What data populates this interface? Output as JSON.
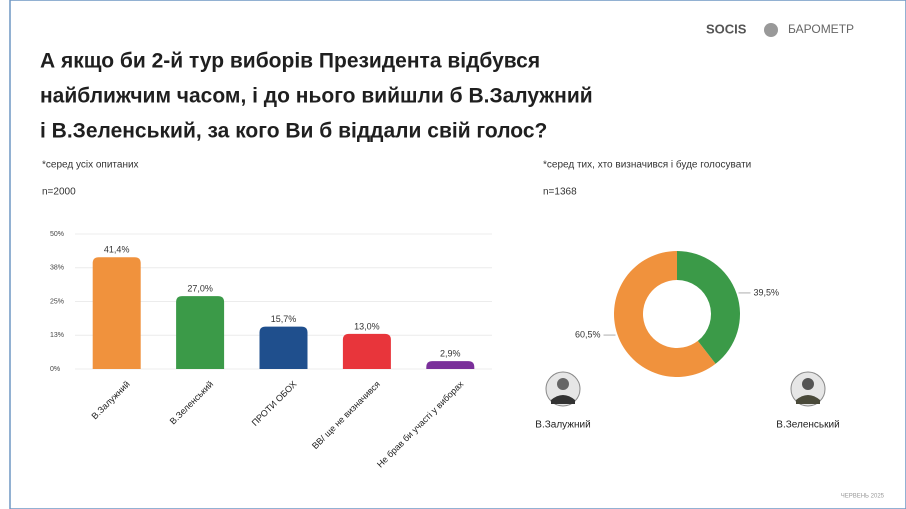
{
  "brand": "SOCIS",
  "brand_product": "БАРОМЕТР",
  "title_lines": [
    "А якщо би 2-й тур виборів Президента відбувся",
    "найближчим часом, і до нього вийшли б В.Залужний",
    "і В.Зеленський, за кого Ви б віддали свій голос?"
  ],
  "footer": "ЧЕРВЕНЬ 2025",
  "chart_data": [
    {
      "type": "bar",
      "subtitle": "*серед усіх опитаних",
      "sample": "n=2000",
      "categories": [
        "В.Залужний",
        "В.Зеленський",
        "ПРОТИ ОБОХ",
        "ВВ/ ще не визначився",
        "Не брав би участі у виборах"
      ],
      "values": [
        41.4,
        27.0,
        15.7,
        13.0,
        2.9
      ],
      "value_labels": [
        "41,4%",
        "27,0%",
        "15,7%",
        "13,0%",
        "2,9%"
      ],
      "colors": [
        "#f0923d",
        "#3b9a48",
        "#1f4f8d",
        "#e8353b",
        "#7a2f9a"
      ],
      "ylim": [
        0,
        50
      ],
      "yticks": [
        {
          "value": 0,
          "label": "0%"
        },
        {
          "value": 12.5,
          "label": "13%"
        },
        {
          "value": 25,
          "label": "25%"
        },
        {
          "value": 37.5,
          "label": "38%"
        },
        {
          "value": 50,
          "label": "50%"
        }
      ],
      "grid": true
    },
    {
      "type": "donut",
      "subtitle": "*серед тих, хто визначився і буде голосувати",
      "sample": "n=1368",
      "categories": [
        "В.Залужний",
        "В.Зеленський"
      ],
      "values": [
        60.5,
        39.5
      ],
      "value_labels": [
        "60,5%",
        "39,5%"
      ],
      "colors": [
        "#f0923d",
        "#3b9a48"
      ]
    }
  ]
}
